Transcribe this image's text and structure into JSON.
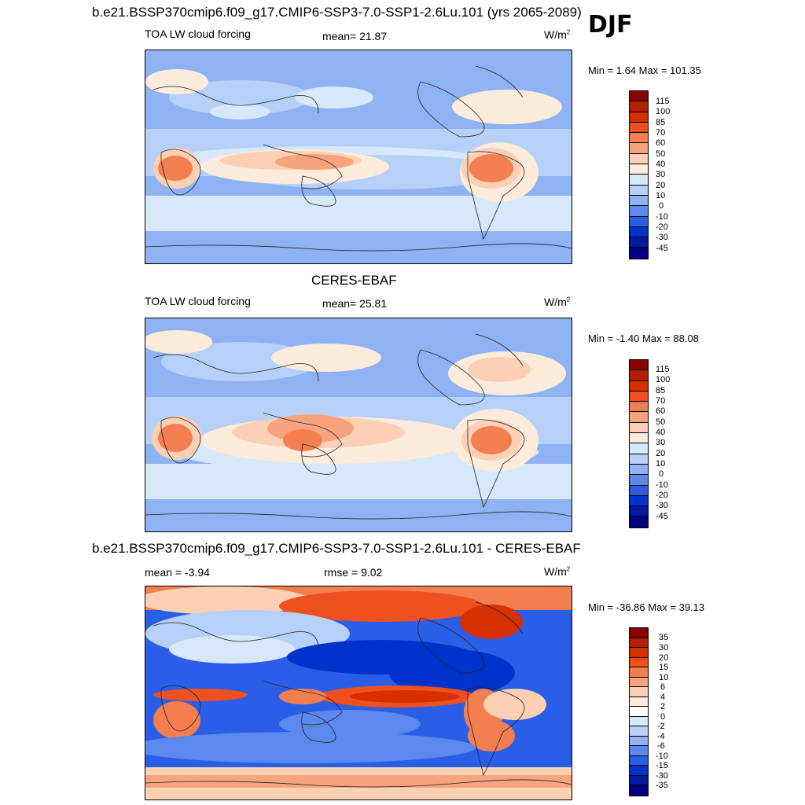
{
  "season": "DJF",
  "panels": [
    {
      "title": "b.e21.BSSP370cmip6.f09_g17.CMIP6-SSP3-7.0-SSP1-2.6Lu.101 (yrs 2065-2089)",
      "left_label": "TOA LW cloud forcing",
      "center_label": "mean=  21.87",
      "units": "W/m",
      "units_sup": "2",
      "minmax": "Min =   1.64 Max = 101.35",
      "colorbar_labels": [
        "115",
        "100",
        "85",
        "70",
        "60",
        "50",
        "40",
        "30",
        "20",
        "10",
        "0",
        "-10",
        "-20",
        "-30",
        "-45"
      ]
    },
    {
      "title": "CERES-EBAF",
      "left_label": "TOA LW cloud forcing",
      "center_label": "mean=  25.81",
      "units": "W/m",
      "units_sup": "2",
      "minmax": "Min =  -1.40 Max =  88.08",
      "colorbar_labels": [
        "115",
        "100",
        "85",
        "70",
        "60",
        "50",
        "40",
        "30",
        "20",
        "10",
        "0",
        "-10",
        "-20",
        "-30",
        "-45"
      ]
    },
    {
      "title": "b.e21.BSSP370cmip6.f09_g17.CMIP6-SSP3-7.0-SSP1-2.6Lu.101 - CERES-EBAF",
      "left_label": "mean =  -3.94",
      "center_label": "rmse =    9.02",
      "units": "W/m",
      "units_sup": "2",
      "minmax": "Min = -36.86 Max =  39.13",
      "colorbar_labels": [
        "35",
        "30",
        "20",
        "15",
        "10",
        "6",
        "4",
        "2",
        "0",
        "-2",
        "-4",
        "-6",
        "-10",
        "-15",
        "-30",
        "-35"
      ]
    }
  ],
  "colors": {
    "abs_scale": [
      "#8b0000",
      "#b22000",
      "#d63000",
      "#f05020",
      "#f37e50",
      "#f7a47e",
      "#fbd0b4",
      "#fdebdc",
      "#d6e8fa",
      "#b7d0f7",
      "#8fb2f2",
      "#5d89ec",
      "#2a5ee6",
      "#0033cc",
      "#001aa0",
      "#000080"
    ],
    "diff_scale": [
      "#8b0000",
      "#b22000",
      "#d63000",
      "#f05020",
      "#f37e50",
      "#f7a47e",
      "#fbd0b4",
      "#fdebdc",
      "#ffffff",
      "#d6e8fa",
      "#b7d0f7",
      "#8fb2f2",
      "#5d89ec",
      "#2a5ee6",
      "#0033cc",
      "#001aa0",
      "#000080"
    ]
  }
}
